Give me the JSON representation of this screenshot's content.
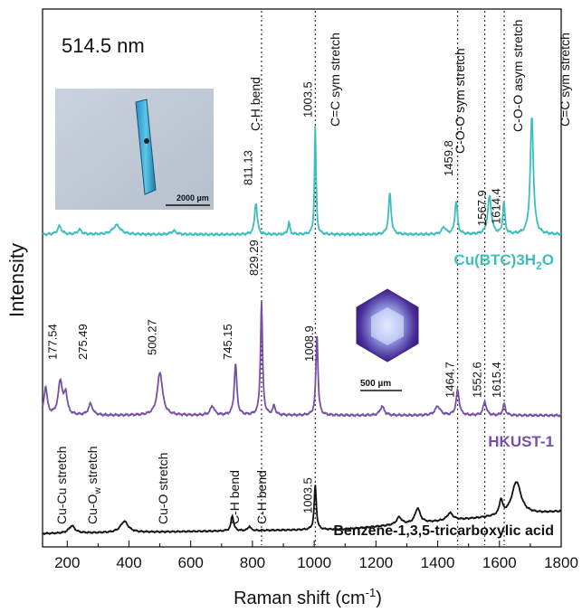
{
  "chart_data": {
    "type": "line",
    "title": "514.5 nm",
    "xlabel": "Raman shift (cm",
    "xlabel_superscript": "-1",
    "xlabel_suffix": ")",
    "ylabel": "Intensity",
    "xlim": [
      120,
      1800
    ],
    "x_ticks": [
      "200",
      "400",
      "600",
      "800",
      "1000",
      "1200",
      "1400",
      "1600",
      "1800"
    ],
    "grid": false,
    "series": [
      {
        "name": "Cu(BTC)3H2O",
        "label_main": "Cu(BTC)3H",
        "label_sub": "2",
        "label_end": "O",
        "color": "#3bbfbd",
        "baseline": [
          [
            120,
            0.02
          ],
          [
            1800,
            0.02
          ]
        ],
        "peaks": [
          {
            "x": 175,
            "h": 0.07,
            "w": 8
          },
          {
            "x": 240,
            "h": 0.04,
            "w": 8
          },
          {
            "x": 360,
            "h": 0.08,
            "w": 15
          },
          {
            "x": 545,
            "h": 0.03,
            "w": 10
          },
          {
            "x": 811.13,
            "h": 0.27,
            "w": 5
          },
          {
            "x": 918,
            "h": 0.1,
            "w": 4
          },
          {
            "x": 1003.5,
            "h": 0.92,
            "w": 3
          },
          {
            "x": 1245,
            "h": 0.35,
            "w": 5
          },
          {
            "x": 1420,
            "h": 0.06,
            "w": 8
          },
          {
            "x": 1459.8,
            "h": 0.28,
            "w": 5
          },
          {
            "x": 1567.9,
            "h": 0.32,
            "w": 7
          },
          {
            "x": 1614.4,
            "h": 0.27,
            "w": 4
          },
          {
            "x": 1705,
            "h": 1.0,
            "w": 6
          }
        ],
        "peak_labels": [
          {
            "x": 811.13,
            "label": "811.13"
          },
          {
            "x": 1003.5,
            "label": "1003.5"
          },
          {
            "x": 1459.8,
            "label": "1459.8"
          },
          {
            "x": 1567.9,
            "label": "1567.9"
          },
          {
            "x": 1614.4,
            "label": "1614.4"
          }
        ]
      },
      {
        "name": "HKUST-1",
        "color": "#7650a8",
        "baseline": [
          [
            120,
            0.02
          ],
          [
            1800,
            0.02
          ]
        ],
        "peaks": [
          {
            "x": 130,
            "h": 0.25,
            "w": 6
          },
          {
            "x": 177.54,
            "h": 0.3,
            "w": 8
          },
          {
            "x": 195,
            "h": 0.18,
            "w": 6
          },
          {
            "x": 275.49,
            "h": 0.1,
            "w": 8
          },
          {
            "x": 500.27,
            "h": 0.38,
            "w": 10
          },
          {
            "x": 670,
            "h": 0.08,
            "w": 8
          },
          {
            "x": 745.15,
            "h": 0.45,
            "w": 5
          },
          {
            "x": 829.29,
            "h": 1.0,
            "w": 4
          },
          {
            "x": 870,
            "h": 0.08,
            "w": 5
          },
          {
            "x": 1008.9,
            "h": 0.72,
            "w": 4
          },
          {
            "x": 1220,
            "h": 0.08,
            "w": 8
          },
          {
            "x": 1400,
            "h": 0.08,
            "w": 10
          },
          {
            "x": 1464.7,
            "h": 0.22,
            "w": 6
          },
          {
            "x": 1552.6,
            "h": 0.12,
            "w": 6
          },
          {
            "x": 1615.4,
            "h": 0.1,
            "w": 5
          }
        ],
        "peak_labels": [
          {
            "x": 177.54,
            "label": "177.54"
          },
          {
            "x": 275.49,
            "label": "275.49"
          },
          {
            "x": 500.27,
            "label": "500.27"
          },
          {
            "x": 745.15,
            "label": "745.15"
          },
          {
            "x": 829.29,
            "label": "829.29"
          },
          {
            "x": 1008.9,
            "label": "1008.9"
          },
          {
            "x": 1464.7,
            "label": "1464.7"
          },
          {
            "x": 1552.6,
            "label": "1552.6"
          },
          {
            "x": 1615.4,
            "label": "1615.4"
          }
        ]
      },
      {
        "name": "Benzene-1,3,5-tricarboxylic acid",
        "color": "#111111",
        "baseline": [
          [
            120,
            0.02
          ],
          [
            1100,
            0.08
          ],
          [
            1600,
            0.25
          ],
          [
            1800,
            0.32
          ]
        ],
        "peaks": [
          {
            "x": 215,
            "h": 0.1,
            "w": 12
          },
          {
            "x": 385,
            "h": 0.15,
            "w": 15
          },
          {
            "x": 735,
            "h": 0.2,
            "w": 5
          },
          {
            "x": 790,
            "h": 0.06,
            "w": 5
          },
          {
            "x": 1003.5,
            "h": 0.6,
            "w": 4
          },
          {
            "x": 1275,
            "h": 0.1,
            "w": 10
          },
          {
            "x": 1335,
            "h": 0.2,
            "w": 10
          },
          {
            "x": 1440,
            "h": 0.1,
            "w": 12
          },
          {
            "x": 1605,
            "h": 0.2,
            "w": 6
          },
          {
            "x": 1655,
            "h": 0.45,
            "w": 18
          }
        ],
        "peak_labels": [
          {
            "x": 1003.5,
            "label": "1003.5"
          }
        ]
      }
    ],
    "vertical_markers": [
      829.29,
      1003.5,
      1464.7,
      1552.6,
      1615.4
    ],
    "annotations": [
      {
        "text": "C-H bend",
        "x": 811.13
      },
      {
        "text": "C=C sym stretch",
        "x": 1008.9
      },
      {
        "text": "C-O-O sym stretch",
        "x": 1464.7
      },
      {
        "text": "C-O-O asym stretch",
        "x": 1567.9
      },
      {
        "text": "C=C sym stretch",
        "x": 1614.4
      },
      {
        "text": "Cu-Cu stretch",
        "x": 177.54
      },
      {
        "text": "Cu-O",
        "subscript": "w",
        "suffix": " stretch",
        "x": 275.49
      },
      {
        "text": "Cu-O stretch",
        "x": 500.27
      },
      {
        "text": "C-H bend",
        "x": 745.15
      },
      {
        "text": "C-H bend",
        "x": 829.29
      }
    ],
    "inset_images": [
      {
        "scale_label": "2000 µm"
      },
      {
        "scale_label": "500 µm"
      }
    ]
  }
}
